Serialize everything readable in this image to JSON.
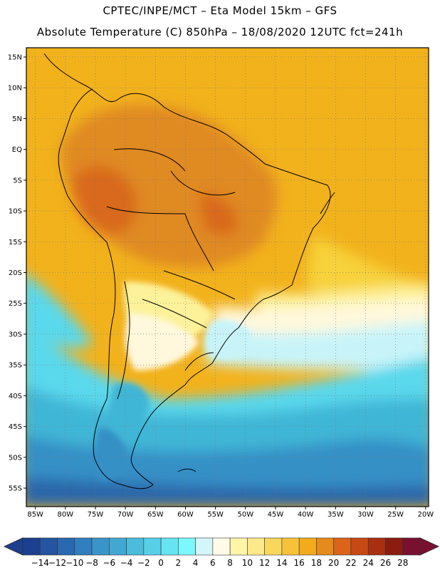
{
  "header": {
    "line1": "CPTEC/INPE/MCT –  Eta Model 15km – GFS",
    "line2": "Absolute Temperature (C) 850hPa – 18/08/2020 12UTC fct=241h"
  },
  "map": {
    "lat_labels": [
      "15N",
      "10N",
      "5N",
      "EQ",
      "5S",
      "10S",
      "15S",
      "20S",
      "25S",
      "30S",
      "35S",
      "40S",
      "45S",
      "50S",
      "55S"
    ],
    "lat_values": [
      15,
      10,
      5,
      0,
      -5,
      -10,
      -15,
      -20,
      -25,
      -30,
      -35,
      -40,
      -45,
      -50,
      -55
    ],
    "lon_labels": [
      "85W",
      "80W",
      "75W",
      "70W",
      "65W",
      "60W",
      "55W",
      "50W",
      "45W",
      "40W",
      "35W",
      "30W",
      "25W",
      "20W"
    ],
    "lon_values": [
      -85,
      -80,
      -75,
      -70,
      -65,
      -60,
      -55,
      -50,
      -45,
      -40,
      -35,
      -30,
      -25,
      -20
    ],
    "colors": {
      "ocean_north": "#f2b21c",
      "land_hot": "#e08a22",
      "land_hotter": "#d9691c",
      "warm": "#f7d23a",
      "mild": "#fdf29a",
      "cream": "#fff8dc",
      "pale_cyan": "#c8f4f9",
      "cyan": "#5ad8ec",
      "teal": "#3fb6d6",
      "blue": "#3590c6",
      "dark_blue": "#2a66aa"
    }
  },
  "colorbar": {
    "labels": [
      "-14",
      "-12",
      "-10",
      "-8",
      "-6",
      "-4",
      "-2",
      "0",
      "2",
      "4",
      "6",
      "8",
      "10",
      "12",
      "14",
      "16",
      "18",
      "20",
      "22",
      "24",
      "26",
      "28"
    ],
    "colors": [
      "#1c3f8f",
      "#2355a0",
      "#2a68b0",
      "#327fbf",
      "#3a94c8",
      "#42a8d2",
      "#4bbcdc",
      "#56d0e8",
      "#66e4f2",
      "#7cf8fc",
      "#d4f6fa",
      "#fffbe6",
      "#fff5a8",
      "#fde98a",
      "#f9d75c",
      "#f6c23a",
      "#f2ab1c",
      "#e68a1c",
      "#d9641a",
      "#c84814",
      "#a83010",
      "#8a1c10",
      "#7a1030"
    ]
  }
}
